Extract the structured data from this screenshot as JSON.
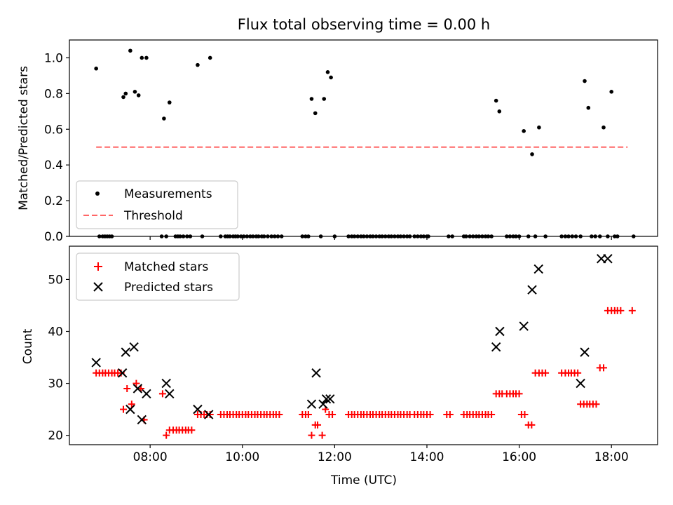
{
  "chart_data": [
    {
      "type": "scatter",
      "title": "Flux total observing time = 0.00 h",
      "xlabel": "",
      "ylabel": "Matched/Predicted stars",
      "ylim": [
        0,
        1.1
      ],
      "yticks": [
        "0.0",
        "0.2",
        "0.4",
        "0.6",
        "0.8",
        "1.0"
      ],
      "xlim": [
        6.25,
        19.0
      ],
      "show_xtick_labels": false,
      "grid": false,
      "legend_loc": "lower-left",
      "series": [
        {
          "name": "Measurements",
          "kind": "points",
          "color": "#000000",
          "marker": "dot",
          "x": [
            6.83,
            6.9,
            6.97,
            7.02,
            7.07,
            7.12,
            7.17,
            7.42,
            7.47,
            7.57,
            7.67,
            7.75,
            7.82,
            7.92,
            8.25,
            8.3,
            8.35,
            8.42,
            8.55,
            8.6,
            8.65,
            8.72,
            8.8,
            8.87,
            9.03,
            9.13,
            9.3,
            9.53,
            9.63,
            9.68,
            9.73,
            9.8,
            9.85,
            9.9,
            9.97,
            10.03,
            10.1,
            10.17,
            10.23,
            10.3,
            10.35,
            10.42,
            10.47,
            10.55,
            10.63,
            10.7,
            10.77,
            10.85,
            11.3,
            11.37,
            11.43,
            11.5,
            11.58,
            11.7,
            11.77,
            11.85,
            11.92,
            12.0,
            12.3,
            12.37,
            12.43,
            12.5,
            12.57,
            12.63,
            12.7,
            12.77,
            12.83,
            12.9,
            12.97,
            13.03,
            13.1,
            13.17,
            13.23,
            13.3,
            13.37,
            13.43,
            13.5,
            13.57,
            13.63,
            13.73,
            13.8,
            13.87,
            13.93,
            14.0,
            14.03,
            14.47,
            14.55,
            14.8,
            14.85,
            14.93,
            15.0,
            15.07,
            15.13,
            15.2,
            15.27,
            15.33,
            15.4,
            15.5,
            15.57,
            15.73,
            15.8,
            15.87,
            15.93,
            16.0,
            16.1,
            16.2,
            16.28,
            16.35,
            16.43,
            16.57,
            16.92,
            17.0,
            17.07,
            17.15,
            17.23,
            17.33,
            17.42,
            17.5,
            17.57,
            17.65,
            17.75,
            17.83,
            17.92,
            18.0,
            18.07,
            18.13,
            18.48
          ],
          "y": [
            0.94,
            0.0,
            0.0,
            0.0,
            0.0,
            0.0,
            0.0,
            0.78,
            0.8,
            1.04,
            0.81,
            0.79,
            1.0,
            1.0,
            0.0,
            0.66,
            0.0,
            0.75,
            0.0,
            0.0,
            0.0,
            0.0,
            0.0,
            0.0,
            0.96,
            0.0,
            1.0,
            0.0,
            0.0,
            0.0,
            0.0,
            0.0,
            0.0,
            0.0,
            0.0,
            0.0,
            0.0,
            0.0,
            0.0,
            0.0,
            0.0,
            0.0,
            0.0,
            0.0,
            0.0,
            0.0,
            0.0,
            0.0,
            0.0,
            0.0,
            0.0,
            0.77,
            0.69,
            0.0,
            0.77,
            0.92,
            0.89,
            0.0,
            0.0,
            0.0,
            0.0,
            0.0,
            0.0,
            0.0,
            0.0,
            0.0,
            0.0,
            0.0,
            0.0,
            0.0,
            0.0,
            0.0,
            0.0,
            0.0,
            0.0,
            0.0,
            0.0,
            0.0,
            0.0,
            0.0,
            0.0,
            0.0,
            0.0,
            0.0,
            0.0,
            0.0,
            0.0,
            0.0,
            0.0,
            0.0,
            0.0,
            0.0,
            0.0,
            0.0,
            0.0,
            0.0,
            0.0,
            0.76,
            0.7,
            0.0,
            0.0,
            0.0,
            0.0,
            0.0,
            0.59,
            0.0,
            0.46,
            0.0,
            0.61,
            0.0,
            0.0,
            0.0,
            0.0,
            0.0,
            0.0,
            0.0,
            0.87,
            0.72,
            0.0,
            0.0,
            0.0,
            0.61,
            0.0,
            0.81,
            0.0,
            0.0,
            0.0
          ]
        },
        {
          "name": "Threshold",
          "kind": "line",
          "color": "#ff6666",
          "linestyle": "dashed",
          "x": [
            6.83,
            18.35
          ],
          "y": [
            0.5,
            0.5
          ]
        }
      ]
    },
    {
      "type": "scatter",
      "title": "",
      "xlabel": "Time (UTC)",
      "ylabel": "Count",
      "ylim": [
        18.2,
        56.4
      ],
      "yticks": [
        "20",
        "30",
        "40",
        "50"
      ],
      "xlim": [
        6.25,
        19.0
      ],
      "xticks": [
        "08:00",
        "10:00",
        "12:00",
        "14:00",
        "16:00",
        "18:00"
      ],
      "grid": false,
      "legend_loc": "upper-left",
      "series": [
        {
          "name": "Matched stars",
          "kind": "points",
          "color": "#ff0000",
          "marker": "plus",
          "x": [
            6.83,
            6.9,
            6.97,
            7.03,
            7.1,
            7.17,
            7.23,
            7.3,
            7.37,
            7.42,
            7.5,
            7.6,
            7.7,
            7.8,
            7.87,
            8.27,
            8.35,
            8.42,
            8.5,
            8.57,
            8.63,
            8.7,
            8.77,
            8.83,
            8.9,
            9.03,
            9.1,
            9.17,
            9.23,
            9.3,
            9.53,
            9.6,
            9.67,
            9.73,
            9.8,
            9.87,
            9.93,
            10.0,
            10.07,
            10.13,
            10.2,
            10.27,
            10.33,
            10.4,
            10.47,
            10.53,
            10.6,
            10.67,
            10.73,
            10.8,
            11.3,
            11.37,
            11.43,
            11.5,
            11.58,
            11.63,
            11.73,
            11.8,
            11.88,
            11.95,
            12.3,
            12.37,
            12.43,
            12.5,
            12.57,
            12.63,
            12.7,
            12.77,
            12.83,
            12.9,
            12.97,
            13.03,
            13.1,
            13.17,
            13.23,
            13.3,
            13.37,
            13.43,
            13.5,
            13.57,
            13.63,
            13.73,
            13.8,
            13.87,
            13.93,
            14.0,
            14.07,
            14.43,
            14.5,
            14.8,
            14.87,
            14.93,
            15.0,
            15.07,
            15.13,
            15.2,
            15.27,
            15.33,
            15.4,
            15.5,
            15.57,
            15.63,
            15.73,
            15.8,
            15.87,
            15.93,
            16.0,
            16.05,
            16.12,
            16.2,
            16.27,
            16.35,
            16.43,
            16.5,
            16.57,
            16.92,
            17.0,
            17.07,
            17.13,
            17.2,
            17.27,
            17.33,
            17.4,
            17.47,
            17.53,
            17.6,
            17.67,
            17.75,
            17.83,
            17.92,
            18.0,
            18.07,
            18.13,
            18.2,
            18.45
          ],
          "y": [
            32,
            32,
            32,
            32,
            32,
            32,
            32,
            32,
            32,
            25,
            29,
            26,
            30,
            29,
            23,
            28,
            20,
            21,
            21,
            21,
            21,
            21,
            21,
            21,
            21,
            24,
            24,
            24,
            24,
            24,
            24,
            24,
            24,
            24,
            24,
            24,
            24,
            24,
            24,
            24,
            24,
            24,
            24,
            24,
            24,
            24,
            24,
            24,
            24,
            24,
            24,
            24,
            24,
            20,
            22,
            22,
            20,
            25,
            24,
            24,
            24,
            24,
            24,
            24,
            24,
            24,
            24,
            24,
            24,
            24,
            24,
            24,
            24,
            24,
            24,
            24,
            24,
            24,
            24,
            24,
            24,
            24,
            24,
            24,
            24,
            24,
            24,
            24,
            24,
            24,
            24,
            24,
            24,
            24,
            24,
            24,
            24,
            24,
            24,
            28,
            28,
            28,
            28,
            28,
            28,
            28,
            28,
            24,
            24,
            22,
            22,
            32,
            32,
            32,
            32,
            32,
            32,
            32,
            32,
            32,
            32,
            26,
            26,
            26,
            26,
            26,
            26,
            33,
            33,
            44,
            44,
            44,
            44,
            44,
            44
          ]
        },
        {
          "name": "Predicted stars",
          "kind": "points",
          "color": "#000000",
          "marker": "x",
          "x": [
            6.83,
            7.4,
            7.47,
            7.57,
            7.65,
            7.73,
            7.82,
            7.92,
            8.35,
            8.42,
            9.03,
            9.27,
            11.5,
            11.6,
            11.75,
            11.82,
            11.9,
            15.5,
            15.58,
            16.1,
            16.28,
            16.42,
            17.33,
            17.42,
            17.78,
            17.92
          ],
          "y": [
            34,
            32,
            36,
            25,
            37,
            29,
            23,
            28,
            30,
            28,
            25,
            24,
            26,
            32,
            26,
            27,
            27,
            37,
            40,
            41,
            48,
            52,
            30,
            36,
            54,
            54
          ]
        }
      ]
    }
  ]
}
